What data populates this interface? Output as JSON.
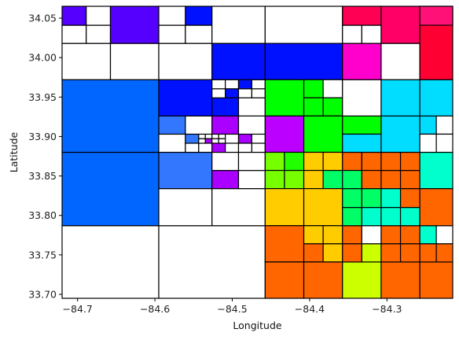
{
  "chart_data": {
    "type": "heatmap",
    "title": "",
    "xlabel": "Longitude",
    "ylabel": "Latitude",
    "xlim": [
      -84.72,
      -84.215
    ],
    "ylim": [
      33.695,
      34.065
    ],
    "xticks": [
      -84.7,
      -84.6,
      -84.5,
      -84.4,
      -84.3
    ],
    "xtick_labels": [
      "−84.7",
      "−84.6",
      "−84.5",
      "−84.4",
      "−84.3"
    ],
    "yticks": [
      33.7,
      33.75,
      33.8,
      33.85,
      33.9,
      33.95,
      34.0,
      34.05
    ],
    "ytick_labels": [
      "33.70",
      "33.75",
      "33.80",
      "33.85",
      "33.90",
      "33.95",
      "34.00",
      "34.05"
    ],
    "grid": false,
    "cells": [
      {
        "x0": -84.72,
        "x1": -84.595,
        "y0": 33.695,
        "y1": 33.787,
        "color": "#ffffff"
      },
      {
        "x0": -84.595,
        "x1": -84.4575,
        "y0": 33.695,
        "y1": 33.787,
        "color": "#ffffff"
      },
      {
        "x0": -84.72,
        "x1": -84.595,
        "y0": 33.787,
        "y1": 33.88,
        "color": "#0066ff"
      },
      {
        "x0": -84.72,
        "x1": -84.595,
        "y0": 33.88,
        "y1": 33.972,
        "color": "#0066ff"
      },
      {
        "x0": -84.72,
        "x1": -84.6575,
        "y0": 33.972,
        "y1": 34.018,
        "color": "#ffffff"
      },
      {
        "x0": -84.6575,
        "x1": -84.595,
        "y0": 33.972,
        "y1": 34.018,
        "color": "#ffffff"
      },
      {
        "x0": -84.72,
        "x1": -84.6888,
        "y0": 34.018,
        "y1": 34.041,
        "color": "#ffffff"
      },
      {
        "x0": -84.6888,
        "x1": -84.6575,
        "y0": 34.018,
        "y1": 34.041,
        "color": "#ffffff"
      },
      {
        "x0": -84.72,
        "x1": -84.6888,
        "y0": 34.041,
        "y1": 34.065,
        "color": "#5500ff"
      },
      {
        "x0": -84.6888,
        "x1": -84.6575,
        "y0": 34.041,
        "y1": 34.065,
        "color": "#ffffff"
      },
      {
        "x0": -84.6575,
        "x1": -84.595,
        "y0": 34.018,
        "y1": 34.065,
        "color": "#5500ff"
      },
      {
        "x0": -84.595,
        "x1": -84.5262,
        "y0": 33.787,
        "y1": 33.834,
        "color": "#ffffff"
      },
      {
        "x0": -84.5262,
        "x1": -84.4575,
        "y0": 33.787,
        "y1": 33.834,
        "color": "#ffffff"
      },
      {
        "x0": -84.595,
        "x1": -84.5262,
        "y0": 33.834,
        "y1": 33.88,
        "color": "#3377ff"
      },
      {
        "x0": -84.5262,
        "x1": -84.4919,
        "y0": 33.834,
        "y1": 33.857,
        "color": "#aa00ff"
      },
      {
        "x0": -84.4919,
        "x1": -84.4575,
        "y0": 33.834,
        "y1": 33.857,
        "color": "#ffffff"
      },
      {
        "x0": -84.5262,
        "x1": -84.4919,
        "y0": 33.857,
        "y1": 33.88,
        "color": "#ffffff"
      },
      {
        "x0": -84.4919,
        "x1": -84.4575,
        "y0": 33.857,
        "y1": 33.88,
        "color": "#ffffff"
      },
      {
        "x0": -84.595,
        "x1": -84.5606,
        "y0": 33.88,
        "y1": 33.903,
        "color": "#ffffff"
      },
      {
        "x0": -84.5606,
        "x1": -84.5434,
        "y0": 33.88,
        "y1": 33.8915,
        "color": "#ffffff"
      },
      {
        "x0": -84.5434,
        "x1": -84.5262,
        "y0": 33.88,
        "y1": 33.8915,
        "color": "#ffffff"
      },
      {
        "x0": -84.5606,
        "x1": -84.5434,
        "y0": 33.8915,
        "y1": 33.903,
        "color": "#3377ff"
      },
      {
        "x0": -84.5434,
        "x1": -84.5348,
        "y0": 33.8915,
        "y1": 33.8973,
        "color": "#ffffff"
      },
      {
        "x0": -84.5348,
        "x1": -84.5262,
        "y0": 33.8915,
        "y1": 33.8973,
        "color": "#aa00ff"
      },
      {
        "x0": -84.5434,
        "x1": -84.5348,
        "y0": 33.8973,
        "y1": 33.903,
        "color": "#ffffff"
      },
      {
        "x0": -84.5348,
        "x1": -84.5262,
        "y0": 33.8973,
        "y1": 33.903,
        "color": "#ffffff"
      },
      {
        "x0": -84.5262,
        "x1": -84.509,
        "y0": 33.88,
        "y1": 33.8915,
        "color": "#aa00ff"
      },
      {
        "x0": -84.509,
        "x1": -84.4919,
        "y0": 33.88,
        "y1": 33.8915,
        "color": "#ffffff"
      },
      {
        "x0": -84.5262,
        "x1": -84.5176,
        "y0": 33.8915,
        "y1": 33.8973,
        "color": "#ffffff"
      },
      {
        "x0": -84.5176,
        "x1": -84.509,
        "y0": 33.8915,
        "y1": 33.8973,
        "color": "#ffffff"
      },
      {
        "x0": -84.5262,
        "x1": -84.5176,
        "y0": 33.8973,
        "y1": 33.903,
        "color": "#ffffff"
      },
      {
        "x0": -84.5176,
        "x1": -84.509,
        "y0": 33.8973,
        "y1": 33.903,
        "color": "#ffffff"
      },
      {
        "x0": -84.509,
        "x1": -84.4919,
        "y0": 33.8915,
        "y1": 33.903,
        "color": "#ffffff"
      },
      {
        "x0": -84.4919,
        "x1": -84.4747,
        "y0": 33.88,
        "y1": 33.8915,
        "color": "#ffffff"
      },
      {
        "x0": -84.4747,
        "x1": -84.4575,
        "y0": 33.88,
        "y1": 33.8915,
        "color": "#ffffff"
      },
      {
        "x0": -84.4919,
        "x1": -84.4747,
        "y0": 33.8915,
        "y1": 33.903,
        "color": "#aa00ff"
      },
      {
        "x0": -84.4747,
        "x1": -84.4575,
        "y0": 33.8915,
        "y1": 33.903,
        "color": "#ffffff"
      },
      {
        "x0": -84.595,
        "x1": -84.5606,
        "y0": 33.903,
        "y1": 33.926,
        "color": "#3377ff"
      },
      {
        "x0": -84.5606,
        "x1": -84.5262,
        "y0": 33.903,
        "y1": 33.926,
        "color": "#ffffff"
      },
      {
        "x0": -84.5262,
        "x1": -84.4919,
        "y0": 33.903,
        "y1": 33.926,
        "color": "#aa00ff"
      },
      {
        "x0": -84.4919,
        "x1": -84.4575,
        "y0": 33.903,
        "y1": 33.926,
        "color": "#ffffff"
      },
      {
        "x0": -84.595,
        "x1": -84.5262,
        "y0": 33.926,
        "y1": 33.972,
        "color": "#0011ff"
      },
      {
        "x0": -84.5262,
        "x1": -84.4919,
        "y0": 33.926,
        "y1": 33.949,
        "color": "#0011ff"
      },
      {
        "x0": -84.4919,
        "x1": -84.4575,
        "y0": 33.926,
        "y1": 33.949,
        "color": "#ffffff"
      },
      {
        "x0": -84.5262,
        "x1": -84.509,
        "y0": 33.949,
        "y1": 33.9605,
        "color": "#ffffff"
      },
      {
        "x0": -84.509,
        "x1": -84.4919,
        "y0": 33.949,
        "y1": 33.9605,
        "color": "#0011ff"
      },
      {
        "x0": -84.5262,
        "x1": -84.509,
        "y0": 33.9605,
        "y1": 33.972,
        "color": "#ffffff"
      },
      {
        "x0": -84.509,
        "x1": -84.4919,
        "y0": 33.9605,
        "y1": 33.972,
        "color": "#ffffff"
      },
      {
        "x0": -84.4919,
        "x1": -84.4747,
        "y0": 33.949,
        "y1": 33.9605,
        "color": "#ffffff"
      },
      {
        "x0": -84.4747,
        "x1": -84.4575,
        "y0": 33.949,
        "y1": 33.9605,
        "color": "#ffffff"
      },
      {
        "x0": -84.4919,
        "x1": -84.4747,
        "y0": 33.9605,
        "y1": 33.972,
        "color": "#0011ff"
      },
      {
        "x0": -84.4747,
        "x1": -84.4575,
        "y0": 33.9605,
        "y1": 33.972,
        "color": "#ffffff"
      },
      {
        "x0": -84.595,
        "x1": -84.5262,
        "y0": 33.972,
        "y1": 34.018,
        "color": "#ffffff"
      },
      {
        "x0": -84.5262,
        "x1": -84.4575,
        "y0": 33.972,
        "y1": 34.018,
        "color": "#0011ff"
      },
      {
        "x0": -84.595,
        "x1": -84.5606,
        "y0": 34.018,
        "y1": 34.041,
        "color": "#ffffff"
      },
      {
        "x0": -84.5606,
        "x1": -84.5262,
        "y0": 34.018,
        "y1": 34.041,
        "color": "#ffffff"
      },
      {
        "x0": -84.595,
        "x1": -84.5606,
        "y0": 34.041,
        "y1": 34.065,
        "color": "#ffffff"
      },
      {
        "x0": -84.5606,
        "x1": -84.5262,
        "y0": 34.041,
        "y1": 34.065,
        "color": "#0011ff"
      },
      {
        "x0": -84.5262,
        "x1": -84.4575,
        "y0": 34.018,
        "y1": 34.065,
        "color": "#ffffff"
      },
      {
        "x0": -84.4575,
        "x1": -84.3575,
        "y0": 33.972,
        "y1": 34.065,
        "color": "#ffffff"
      },
      {
        "x0": -84.4575,
        "x1": -84.3575,
        "y0": 33.972,
        "y1": 34.018,
        "color": "#0011ff"
      },
      {
        "x0": -84.4575,
        "x1": -84.4075,
        "y0": 33.926,
        "y1": 33.972,
        "color": "#00ff00"
      },
      {
        "x0": -84.4575,
        "x1": -84.4075,
        "y0": 33.88,
        "y1": 33.926,
        "color": "#bb00ff"
      },
      {
        "x0": -84.4075,
        "x1": -84.3825,
        "y0": 33.949,
        "y1": 33.972,
        "color": "#00ff00"
      },
      {
        "x0": -84.3825,
        "x1": -84.3575,
        "y0": 33.949,
        "y1": 33.972,
        "color": "#ffffff"
      },
      {
        "x0": -84.4075,
        "x1": -84.3825,
        "y0": 33.926,
        "y1": 33.949,
        "color": "#00ff00"
      },
      {
        "x0": -84.3825,
        "x1": -84.3575,
        "y0": 33.926,
        "y1": 33.949,
        "color": "#00ff00"
      },
      {
        "x0": -84.4075,
        "x1": -84.3575,
        "y0": 33.88,
        "y1": 33.926,
        "color": "#00ff00"
      },
      {
        "x0": -84.4575,
        "x1": -84.4325,
        "y0": 33.857,
        "y1": 33.88,
        "color": "#77ff00"
      },
      {
        "x0": -84.4325,
        "x1": -84.4075,
        "y0": 33.857,
        "y1": 33.88,
        "color": "#22ff00"
      },
      {
        "x0": -84.4575,
        "x1": -84.4325,
        "y0": 33.834,
        "y1": 33.857,
        "color": "#77ff00"
      },
      {
        "x0": -84.4325,
        "x1": -84.4075,
        "y0": 33.834,
        "y1": 33.857,
        "color": "#77ff00"
      },
      {
        "x0": -84.4075,
        "x1": -84.3825,
        "y0": 33.857,
        "y1": 33.88,
        "color": "#ffcc00"
      },
      {
        "x0": -84.3825,
        "x1": -84.3575,
        "y0": 33.857,
        "y1": 33.88,
        "color": "#ffcc00"
      },
      {
        "x0": -84.4075,
        "x1": -84.3825,
        "y0": 33.834,
        "y1": 33.857,
        "color": "#ffcc00"
      },
      {
        "x0": -84.3825,
        "x1": -84.3575,
        "y0": 33.834,
        "y1": 33.857,
        "color": "#00ff66"
      },
      {
        "x0": -84.4575,
        "x1": -84.4075,
        "y0": 33.787,
        "y1": 33.834,
        "color": "#ffcc00"
      },
      {
        "x0": -84.4075,
        "x1": -84.3575,
        "y0": 33.787,
        "y1": 33.834,
        "color": "#ffcc00"
      },
      {
        "x0": -84.4575,
        "x1": -84.4075,
        "y0": 33.741,
        "y1": 33.787,
        "color": "#ff6600"
      },
      {
        "x0": -84.4075,
        "x1": -84.3825,
        "y0": 33.764,
        "y1": 33.787,
        "color": "#ffcc00"
      },
      {
        "x0": -84.3825,
        "x1": -84.3575,
        "y0": 33.764,
        "y1": 33.787,
        "color": "#ffcc00"
      },
      {
        "x0": -84.4075,
        "x1": -84.3825,
        "y0": 33.741,
        "y1": 33.764,
        "color": "#ff6600"
      },
      {
        "x0": -84.3825,
        "x1": -84.3575,
        "y0": 33.741,
        "y1": 33.764,
        "color": "#ffcc00"
      },
      {
        "x0": -84.4575,
        "x1": -84.4075,
        "y0": 33.695,
        "y1": 33.741,
        "color": "#ff6600"
      },
      {
        "x0": -84.4075,
        "x1": -84.3575,
        "y0": 33.695,
        "y1": 33.741,
        "color": "#ff6600"
      },
      {
        "x0": -84.3575,
        "x1": -84.3075,
        "y0": 33.695,
        "y1": 33.741,
        "color": "#ccff00"
      },
      {
        "x0": -84.3075,
        "x1": -84.2575,
        "y0": 33.695,
        "y1": 33.741,
        "color": "#ff6600"
      },
      {
        "x0": -84.2575,
        "x1": -84.215,
        "y0": 33.695,
        "y1": 33.741,
        "color": "#ff6600"
      },
      {
        "x0": -84.3575,
        "x1": -84.3325,
        "y0": 33.764,
        "y1": 33.787,
        "color": "#ff6600"
      },
      {
        "x0": -84.3325,
        "x1": -84.3075,
        "y0": 33.764,
        "y1": 33.787,
        "color": "#ffffff"
      },
      {
        "x0": -84.3575,
        "x1": -84.3325,
        "y0": 33.741,
        "y1": 33.764,
        "color": "#ff6600"
      },
      {
        "x0": -84.3325,
        "x1": -84.3075,
        "y0": 33.741,
        "y1": 33.764,
        "color": "#ccff00"
      },
      {
        "x0": -84.3075,
        "x1": -84.2825,
        "y0": 33.764,
        "y1": 33.787,
        "color": "#ff6600"
      },
      {
        "x0": -84.2825,
        "x1": -84.2575,
        "y0": 33.764,
        "y1": 33.787,
        "color": "#ff6600"
      },
      {
        "x0": -84.3075,
        "x1": -84.2825,
        "y0": 33.741,
        "y1": 33.764,
        "color": "#ff6600"
      },
      {
        "x0": -84.2825,
        "x1": -84.2575,
        "y0": 33.741,
        "y1": 33.764,
        "color": "#ff6600"
      },
      {
        "x0": -84.2575,
        "x1": -84.2362,
        "y0": 33.764,
        "y1": 33.787,
        "color": "#00ffcc"
      },
      {
        "x0": -84.2362,
        "x1": -84.215,
        "y0": 33.764,
        "y1": 33.787,
        "color": "#ffffff"
      },
      {
        "x0": -84.2575,
        "x1": -84.2362,
        "y0": 33.741,
        "y1": 33.764,
        "color": "#ff6600"
      },
      {
        "x0": -84.2362,
        "x1": -84.215,
        "y0": 33.741,
        "y1": 33.764,
        "color": "#ff6600"
      },
      {
        "x0": -84.3575,
        "x1": -84.3325,
        "y0": 33.81,
        "y1": 33.834,
        "color": "#00ff66"
      },
      {
        "x0": -84.3325,
        "x1": -84.3075,
        "y0": 33.81,
        "y1": 33.834,
        "color": "#00ff66"
      },
      {
        "x0": -84.3575,
        "x1": -84.3325,
        "y0": 33.787,
        "y1": 33.81,
        "color": "#00ff66"
      },
      {
        "x0": -84.3325,
        "x1": -84.3075,
        "y0": 33.787,
        "y1": 33.81,
        "color": "#00ffcc"
      },
      {
        "x0": -84.3575,
        "x1": -84.3325,
        "y0": 33.857,
        "y1": 33.88,
        "color": "#ff6600"
      },
      {
        "x0": -84.3325,
        "x1": -84.3075,
        "y0": 33.857,
        "y1": 33.88,
        "color": "#ff6600"
      },
      {
        "x0": -84.3575,
        "x1": -84.3325,
        "y0": 33.834,
        "y1": 33.857,
        "color": "#00ff66"
      },
      {
        "x0": -84.3325,
        "x1": -84.3075,
        "y0": 33.834,
        "y1": 33.857,
        "color": "#ff6600"
      },
      {
        "x0": -84.3075,
        "x1": -84.2825,
        "y0": 33.81,
        "y1": 33.834,
        "color": "#00ffcc"
      },
      {
        "x0": -84.2825,
        "x1": -84.2575,
        "y0": 33.81,
        "y1": 33.834,
        "color": "#ff6600"
      },
      {
        "x0": -84.3075,
        "x1": -84.2825,
        "y0": 33.787,
        "y1": 33.81,
        "color": "#00ffcc"
      },
      {
        "x0": -84.2825,
        "x1": -84.2575,
        "y0": 33.787,
        "y1": 33.81,
        "color": "#00ffcc"
      },
      {
        "x0": -84.3075,
        "x1": -84.2825,
        "y0": 33.834,
        "y1": 33.857,
        "color": "#ff6600"
      },
      {
        "x0": -84.2825,
        "x1": -84.2575,
        "y0": 33.834,
        "y1": 33.857,
        "color": "#ff6600"
      },
      {
        "x0": -84.3075,
        "x1": -84.2825,
        "y0": 33.857,
        "y1": 33.88,
        "color": "#ff6600"
      },
      {
        "x0": -84.2825,
        "x1": -84.2575,
        "y0": 33.857,
        "y1": 33.88,
        "color": "#ff6600"
      },
      {
        "x0": -84.2575,
        "x1": -84.215,
        "y0": 33.787,
        "y1": 33.834,
        "color": "#ff6600"
      },
      {
        "x0": -84.2575,
        "x1": -84.215,
        "y0": 33.834,
        "y1": 33.88,
        "color": "#00ffcc"
      },
      {
        "x0": -84.3575,
        "x1": -84.3075,
        "y0": 33.903,
        "y1": 33.926,
        "color": "#00ff00"
      },
      {
        "x0": -84.3575,
        "x1": -84.3075,
        "y0": 33.88,
        "y1": 33.903,
        "color": "#00ddff"
      },
      {
        "x0": -84.3075,
        "x1": -84.2575,
        "y0": 33.88,
        "y1": 33.926,
        "color": "#00ddff"
      },
      {
        "x0": -84.2575,
        "x1": -84.2362,
        "y0": 33.903,
        "y1": 33.926,
        "color": "#00ddff"
      },
      {
        "x0": -84.2362,
        "x1": -84.215,
        "y0": 33.903,
        "y1": 33.926,
        "color": "#ffffff"
      },
      {
        "x0": -84.2575,
        "x1": -84.2362,
        "y0": 33.88,
        "y1": 33.903,
        "color": "#ffffff"
      },
      {
        "x0": -84.2362,
        "x1": -84.215,
        "y0": 33.88,
        "y1": 33.903,
        "color": "#ffffff"
      },
      {
        "x0": -84.3575,
        "x1": -84.3075,
        "y0": 33.926,
        "y1": 33.972,
        "color": "#ffffff"
      },
      {
        "x0": -84.3075,
        "x1": -84.2575,
        "y0": 33.926,
        "y1": 33.972,
        "color": "#00ddff"
      },
      {
        "x0": -84.2575,
        "x1": -84.215,
        "y0": 33.926,
        "y1": 33.972,
        "color": "#00ddff"
      },
      {
        "x0": -84.3575,
        "x1": -84.3075,
        "y0": 33.972,
        "y1": 34.018,
        "color": "#ff00cc"
      },
      {
        "x0": -84.3575,
        "x1": -84.3325,
        "y0": 34.018,
        "y1": 34.041,
        "color": "#ffffff"
      },
      {
        "x0": -84.3325,
        "x1": -84.3075,
        "y0": 34.018,
        "y1": 34.041,
        "color": "#ffffff"
      },
      {
        "x0": -84.3575,
        "x1": -84.3075,
        "y0": 34.041,
        "y1": 34.065,
        "color": "#ff0055"
      },
      {
        "x0": -84.3075,
        "x1": -84.2575,
        "y0": 33.972,
        "y1": 34.018,
        "color": "#ffffff"
      },
      {
        "x0": -84.3075,
        "x1": -84.2575,
        "y0": 34.018,
        "y1": 34.065,
        "color": "#ff0066"
      },
      {
        "x0": -84.2575,
        "x1": -84.215,
        "y0": 33.972,
        "y1": 34.065,
        "color": "#ff0033"
      },
      {
        "x0": -84.2575,
        "x1": -84.215,
        "y0": 34.041,
        "y1": 34.065,
        "color": "#ff1177"
      }
    ]
  }
}
